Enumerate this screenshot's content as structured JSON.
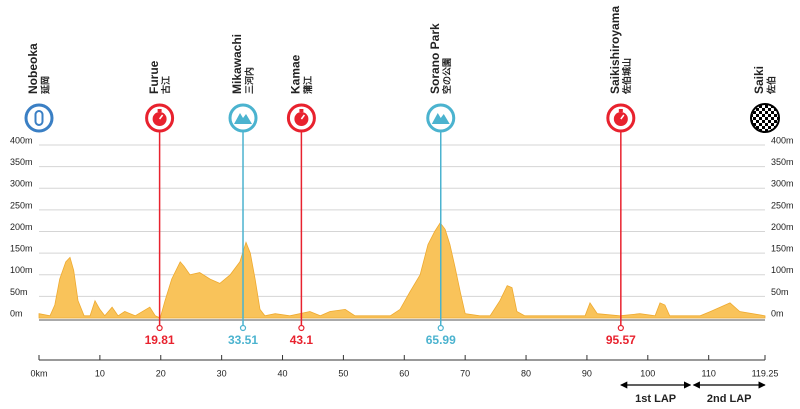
{
  "chart_data": {
    "type": "area",
    "color": "#f9c35a",
    "x": [
      0,
      1.8,
      2.6,
      3.4,
      4.4,
      5.1,
      5.7,
      6.4,
      7.4,
      8.4,
      9.2,
      10,
      10.8,
      12,
      13,
      14.1,
      15.8,
      18.2,
      19.1,
      19.9,
      20.7,
      21.8,
      23.2,
      23.8,
      24.8,
      26.4,
      28.1,
      29.7,
      31.4,
      33,
      34,
      34.7,
      35.5,
      36.3,
      37.1,
      38.8,
      41.2,
      44.5,
      46.2,
      47.8,
      50.3,
      51.9,
      54.4,
      57.7,
      59.3,
      60.9,
      62.6,
      63.9,
      65,
      65.9,
      66.7,
      67.5,
      68.3,
      69.2,
      70,
      72.4,
      74.1,
      75.7,
      76.9,
      77.7,
      78.5,
      79.8,
      85.6,
      89.7,
      90.5,
      91.7,
      95.4,
      98.7,
      101.2,
      102,
      102.8,
      103.6,
      108.6,
      110.3,
      113.5,
      115.1,
      119.25
    ],
    "values": [
      10,
      5,
      30,
      90,
      130,
      140,
      110,
      40,
      5,
      5,
      40,
      20,
      5,
      25,
      5,
      15,
      5,
      25,
      5,
      0,
      40,
      90,
      130,
      120,
      100,
      105,
      90,
      80,
      100,
      130,
      175,
      150,
      90,
      20,
      5,
      10,
      5,
      15,
      5,
      15,
      20,
      5,
      5,
      5,
      20,
      60,
      100,
      170,
      200,
      220,
      205,
      170,
      120,
      60,
      10,
      5,
      5,
      40,
      75,
      70,
      15,
      5,
      5,
      5,
      35,
      10,
      5,
      10,
      5,
      35,
      30,
      5,
      5,
      15,
      35,
      15,
      5
    ],
    "xlim": [
      0,
      119.25
    ],
    "ylim": [
      0,
      400
    ],
    "xticks": [
      {
        "value": 0,
        "label": "0km"
      },
      10,
      20,
      30,
      40,
      50,
      60,
      70,
      80,
      90,
      100,
      110,
      119.25
    ],
    "yticks": [
      {
        "value": 0,
        "label": "0m"
      },
      {
        "value": 50,
        "label": "50m"
      },
      {
        "value": 100,
        "label": "100m"
      },
      {
        "value": 150,
        "label": "150m"
      },
      {
        "value": 200,
        "label": "200m"
      },
      {
        "value": 250,
        "label": "250m"
      },
      {
        "value": 300,
        "label": "300m"
      },
      {
        "value": 350,
        "label": "350m"
      },
      {
        "value": 400,
        "label": "400m"
      }
    ],
    "grid": true,
    "waypoints": [
      {
        "name": "Nobeoka",
        "name_jp": "延岡",
        "km": 0,
        "icon": "start",
        "color": "#3a7fc4"
      },
      {
        "name": "Furue",
        "name_jp": "古江",
        "km": 19.81,
        "icon": "sprint",
        "color": "#e8222e"
      },
      {
        "name": "Mikawachi",
        "name_jp": "三河内",
        "km": 33.51,
        "icon": "kom",
        "color": "#4bb3cf"
      },
      {
        "name": "Kamae",
        "name_jp": "蒲江",
        "km": 43.1,
        "icon": "sprint",
        "color": "#e8222e"
      },
      {
        "name": "Sorano Park",
        "name_jp": "空の公園",
        "km": 65.99,
        "icon": "kom",
        "color": "#4bb3cf"
      },
      {
        "name": "Saikishiroyama",
        "name_jp": "佐伯城山",
        "km": 95.57,
        "icon": "sprint",
        "color": "#e8222e"
      },
      {
        "name": "Saiki",
        "name_jp": "佐伯",
        "km": 119.25,
        "icon": "finish",
        "color": "#000000"
      }
    ],
    "laps": [
      {
        "label": "1st LAP",
        "from": 95.57,
        "to": 107
      },
      {
        "label": "2nd LAP",
        "from": 107.5,
        "to": 119.25
      }
    ]
  }
}
